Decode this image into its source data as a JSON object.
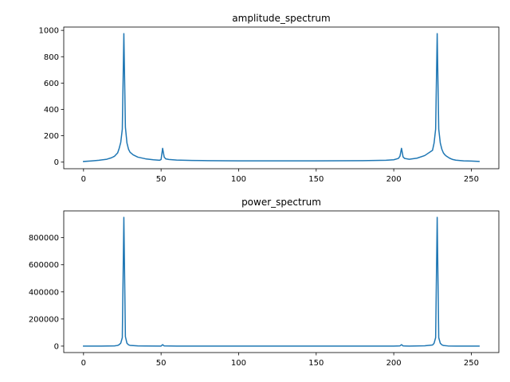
{
  "chart_data": [
    {
      "type": "line",
      "title": "amplitude_spectrum",
      "xlabel": "",
      "ylabel": "",
      "xlim": [
        -12.75,
        267.75
      ],
      "ylim": [
        -50,
        1025
      ],
      "xticks": [
        0,
        50,
        100,
        150,
        200,
        250
      ],
      "yticks": [
        0,
        200,
        400,
        600,
        800,
        1000
      ],
      "grid": false,
      "color": "#1f77b4",
      "x": [
        0,
        5,
        10,
        15,
        18,
        20,
        22,
        23,
        24,
        25,
        26,
        27,
        28,
        29,
        30,
        32,
        35,
        40,
        45,
        49,
        50,
        51,
        52,
        53,
        55,
        60,
        70,
        80,
        100,
        128,
        150,
        180,
        195,
        200,
        203,
        204,
        205,
        206,
        207,
        210,
        215,
        220,
        225,
        226,
        227,
        228,
        229,
        230,
        231,
        232,
        233,
        234,
        236,
        238,
        240,
        245,
        250,
        255
      ],
      "y": [
        5,
        9,
        14,
        22,
        33,
        45,
        70,
        105,
        150,
        250,
        975,
        265,
        145,
        98,
        75,
        55,
        38,
        25,
        18,
        14,
        20,
        105,
        38,
        25,
        20,
        16,
        13,
        11,
        10,
        10,
        10,
        11,
        14,
        18,
        28,
        45,
        105,
        40,
        28,
        22,
        30,
        50,
        90,
        145,
        250,
        975,
        250,
        145,
        98,
        70,
        55,
        45,
        30,
        20,
        15,
        10,
        8,
        5
      ]
    },
    {
      "type": "line",
      "title": "power_spectrum",
      "xlabel": "",
      "ylabel": "",
      "xlim": [
        -12.75,
        267.75
      ],
      "ylim": [
        -47500,
        997500
      ],
      "xticks": [
        0,
        50,
        100,
        150,
        200,
        250
      ],
      "yticks": [
        0,
        200000,
        400000,
        600000,
        800000
      ],
      "grid": false,
      "color": "#1f77b4",
      "x": [
        0,
        10,
        20,
        22,
        23,
        24,
        25,
        26,
        27,
        28,
        29,
        30,
        35,
        40,
        50,
        51,
        52,
        60,
        100,
        128,
        150,
        200,
        204,
        205,
        206,
        210,
        220,
        225,
        226,
        227,
        228,
        229,
        230,
        231,
        232,
        235,
        240,
        250,
        255
      ],
      "y": [
        0,
        200,
        2000,
        5000,
        11000,
        22000,
        62500,
        950000,
        70000,
        21000,
        9600,
        5600,
        1400,
        600,
        400,
        11000,
        1400,
        260,
        100,
        100,
        100,
        400,
        2000,
        11000,
        1600,
        500,
        2500,
        8100,
        21000,
        62500,
        950000,
        62500,
        21000,
        9600,
        4900,
        1300,
        400,
        64,
        0
      ]
    }
  ]
}
